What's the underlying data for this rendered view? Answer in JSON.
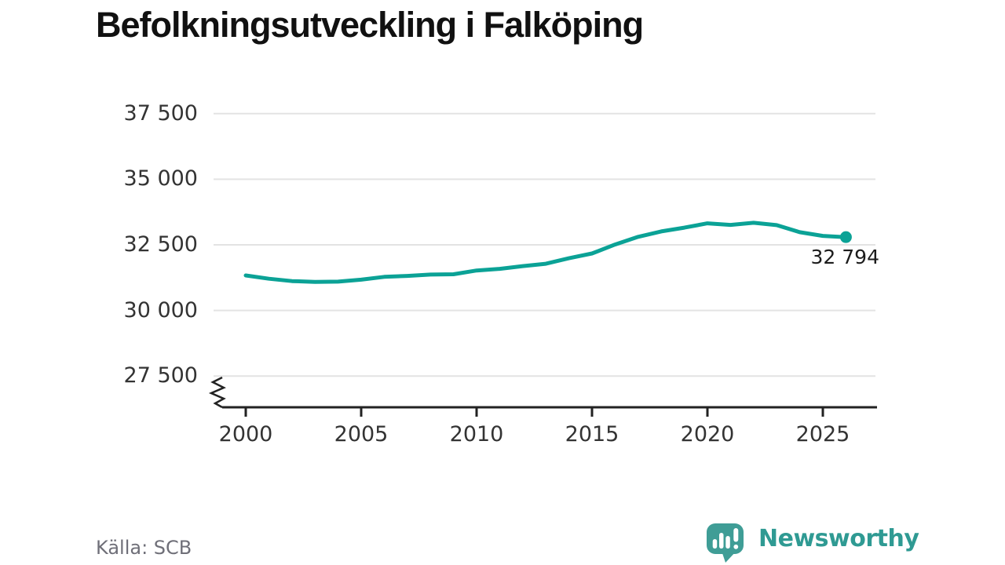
{
  "title": "Befolkningsutveckling i Falköping",
  "footer": {
    "source": "Källa: SCB",
    "brand": "Newsworthy"
  },
  "colors": {
    "line": "#0ba296",
    "marker": "#0ba296",
    "grid": "#e3e3e3",
    "axis": "#222222",
    "title": "#111111",
    "tick_label": "#333333",
    "end_label": "#1c1c1c",
    "source_text": "#6f6f78",
    "brand": "#2f9a93",
    "logo": "#3f9d96"
  },
  "chart_data": {
    "type": "line",
    "title": "Befolkningsutveckling i Falköping",
    "xlabel": "",
    "ylabel": "",
    "legend": "none",
    "grid": "horizontal",
    "axis_break": true,
    "x": [
      2000,
      2001,
      2002,
      2003,
      2004,
      2005,
      2006,
      2007,
      2008,
      2009,
      2010,
      2011,
      2012,
      2013,
      2014,
      2015,
      2016,
      2017,
      2018,
      2019,
      2020,
      2021,
      2022,
      2023,
      2024,
      2025,
      2026
    ],
    "series": [
      {
        "name": "Befolkning",
        "values": [
          31334,
          31208,
          31118,
          31088,
          31096,
          31171,
          31279,
          31316,
          31366,
          31380,
          31523,
          31584,
          31689,
          31778,
          31988,
          32170,
          32511,
          32805,
          33010,
          33155,
          33320,
          33260,
          33340,
          33250,
          32980,
          32840,
          32794
        ]
      }
    ],
    "end_value": 32794,
    "end_label": "32 794",
    "xticks": {
      "values": [
        2000,
        2005,
        2010,
        2015,
        2020,
        2025
      ],
      "labels": [
        "2000",
        "2005",
        "2010",
        "2015",
        "2020",
        "2025"
      ]
    },
    "yticks": {
      "values": [
        27500,
        30000,
        32500,
        35000,
        37500
      ],
      "labels": [
        "27 500",
        "30 000",
        "32 500",
        "35 000",
        "37 500"
      ]
    },
    "ylim_display": [
      27500,
      37500
    ]
  }
}
